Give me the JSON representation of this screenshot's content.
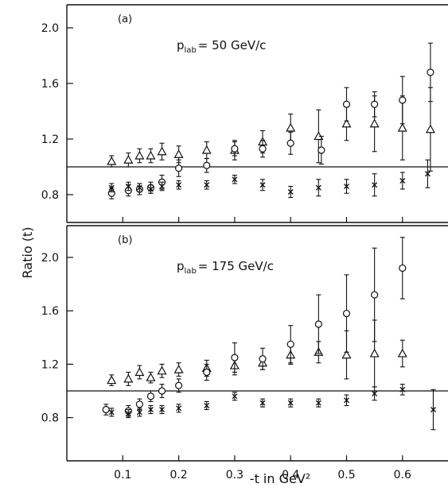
{
  "chart_data": {
    "type": "scatter",
    "ylabel": "Ratio (t)",
    "xlabel": "-t  in  GeV²",
    "x_ticks": [
      0.1,
      0.2,
      0.3,
      0.4,
      0.5,
      0.6
    ],
    "x_tick_labels": [
      "0.1",
      "0.2",
      "0.3",
      "0.4",
      "0.5",
      "0.6"
    ],
    "xlim": [
      0.0,
      0.67
    ],
    "reference_line": 1.0,
    "grid": false,
    "panels": [
      {
        "id": "a",
        "label": "(a)",
        "beam_label_main": "p",
        "beam_label_sub": "lab",
        "beam_label_value": "= 50 GeV/c",
        "ylim": [
          0.6,
          2.2
        ],
        "y_ticks": [
          0.8,
          1.2,
          1.6,
          2.0
        ],
        "y_tick_labels": [
          "0.8",
          "1.2",
          "1.6",
          "2.0"
        ],
        "series": [
          {
            "marker": "triangle",
            "points": [
              {
                "x": 0.08,
                "y": 1.04,
                "err": 0.04
              },
              {
                "x": 0.11,
                "y": 1.05,
                "err": 0.05
              },
              {
                "x": 0.13,
                "y": 1.08,
                "err": 0.05
              },
              {
                "x": 0.15,
                "y": 1.08,
                "err": 0.05
              },
              {
                "x": 0.17,
                "y": 1.11,
                "err": 0.06
              },
              {
                "x": 0.2,
                "y": 1.09,
                "err": 0.06
              },
              {
                "x": 0.25,
                "y": 1.12,
                "err": 0.06
              },
              {
                "x": 0.3,
                "y": 1.12,
                "err": 0.07
              },
              {
                "x": 0.35,
                "y": 1.18,
                "err": 0.08
              },
              {
                "x": 0.4,
                "y": 1.28,
                "err": 0.1
              },
              {
                "x": 0.45,
                "y": 1.22,
                "err": 0.19
              },
              {
                "x": 0.5,
                "y": 1.31,
                "err": 0.12
              },
              {
                "x": 0.55,
                "y": 1.31,
                "err": 0.2
              },
              {
                "x": 0.6,
                "y": 1.28,
                "err": 0.23
              },
              {
                "x": 0.65,
                "y": 1.27,
                "err": 0.3
              }
            ]
          },
          {
            "marker": "circle",
            "points": [
              {
                "x": 0.08,
                "y": 0.81,
                "err": 0.04
              },
              {
                "x": 0.11,
                "y": 0.83,
                "err": 0.04
              },
              {
                "x": 0.13,
                "y": 0.84,
                "err": 0.04
              },
              {
                "x": 0.15,
                "y": 0.85,
                "err": 0.04
              },
              {
                "x": 0.17,
                "y": 0.89,
                "err": 0.05
              },
              {
                "x": 0.2,
                "y": 0.99,
                "err": 0.06
              },
              {
                "x": 0.25,
                "y": 1.01,
                "err": 0.05
              },
              {
                "x": 0.3,
                "y": 1.13,
                "err": 0.05
              },
              {
                "x": 0.35,
                "y": 1.13,
                "err": 0.06
              },
              {
                "x": 0.4,
                "y": 1.17,
                "err": 0.08
              },
              {
                "x": 0.455,
                "y": 1.12,
                "err": 0.1
              },
              {
                "x": 0.5,
                "y": 1.45,
                "err": 0.12
              },
              {
                "x": 0.55,
                "y": 1.45,
                "err": 0.09
              },
              {
                "x": 0.6,
                "y": 1.48,
                "err": 0.17
              },
              {
                "x": 0.65,
                "y": 1.68,
                "err": 0.21
              }
            ]
          },
          {
            "marker": "cross",
            "points": [
              {
                "x": 0.08,
                "y": 0.85,
                "err": 0.03
              },
              {
                "x": 0.11,
                "y": 0.86,
                "err": 0.03
              },
              {
                "x": 0.13,
                "y": 0.85,
                "err": 0.03
              },
              {
                "x": 0.15,
                "y": 0.84,
                "err": 0.03
              },
              {
                "x": 0.17,
                "y": 0.86,
                "err": 0.03
              },
              {
                "x": 0.2,
                "y": 0.87,
                "err": 0.03
              },
              {
                "x": 0.25,
                "y": 0.87,
                "err": 0.03
              },
              {
                "x": 0.3,
                "y": 0.91,
                "err": 0.03
              },
              {
                "x": 0.35,
                "y": 0.87,
                "err": 0.04
              },
              {
                "x": 0.4,
                "y": 0.82,
                "err": 0.04
              },
              {
                "x": 0.45,
                "y": 0.85,
                "err": 0.06
              },
              {
                "x": 0.5,
                "y": 0.86,
                "err": 0.05
              },
              {
                "x": 0.55,
                "y": 0.87,
                "err": 0.08
              },
              {
                "x": 0.6,
                "y": 0.9,
                "err": 0.06
              },
              {
                "x": 0.645,
                "y": 0.95,
                "err": 0.1
              }
            ]
          }
        ]
      },
      {
        "id": "b",
        "label": "(b)",
        "beam_label_main": "p",
        "beam_label_sub": "lab",
        "beam_label_value": "= 175 GeV/c",
        "ylim": [
          0.6,
          2.2
        ],
        "y_ticks": [
          0.8,
          1.2,
          1.6,
          2.0
        ],
        "y_tick_labels": [
          "0.8",
          "1.2",
          "1.6",
          "2.0"
        ],
        "series": [
          {
            "marker": "triangle",
            "points": [
              {
                "x": 0.08,
                "y": 1.08,
                "err": 0.04
              },
              {
                "x": 0.11,
                "y": 1.09,
                "err": 0.05
              },
              {
                "x": 0.13,
                "y": 1.14,
                "err": 0.05
              },
              {
                "x": 0.15,
                "y": 1.1,
                "err": 0.04
              },
              {
                "x": 0.17,
                "y": 1.15,
                "err": 0.05
              },
              {
                "x": 0.2,
                "y": 1.16,
                "err": 0.05
              },
              {
                "x": 0.25,
                "y": 1.17,
                "err": 0.06
              },
              {
                "x": 0.3,
                "y": 1.19,
                "err": 0.07
              },
              {
                "x": 0.35,
                "y": 1.21,
                "err": 0.05
              },
              {
                "x": 0.4,
                "y": 1.27,
                "err": 0.07
              },
              {
                "x": 0.45,
                "y": 1.29,
                "err": 0.08
              },
              {
                "x": 0.5,
                "y": 1.27,
                "err": 0.18
              },
              {
                "x": 0.55,
                "y": 1.28,
                "err": 0.25
              },
              {
                "x": 0.6,
                "y": 1.28,
                "err": 0.1
              }
            ]
          },
          {
            "marker": "circle",
            "points": [
              {
                "x": 0.07,
                "y": 0.86,
                "err": 0.04
              },
              {
                "x": 0.11,
                "y": 0.85,
                "err": 0.04
              },
              {
                "x": 0.13,
                "y": 0.9,
                "err": 0.04
              },
              {
                "x": 0.15,
                "y": 0.96,
                "err": 0.04
              },
              {
                "x": 0.17,
                "y": 1.0,
                "err": 0.05
              },
              {
                "x": 0.2,
                "y": 1.04,
                "err": 0.05
              },
              {
                "x": 0.25,
                "y": 1.14,
                "err": 0.06
              },
              {
                "x": 0.3,
                "y": 1.25,
                "err": 0.11
              },
              {
                "x": 0.35,
                "y": 1.24,
                "err": 0.08
              },
              {
                "x": 0.4,
                "y": 1.35,
                "err": 0.14
              },
              {
                "x": 0.45,
                "y": 1.5,
                "err": 0.22
              },
              {
                "x": 0.5,
                "y": 1.58,
                "err": 0.29
              },
              {
                "x": 0.55,
                "y": 1.72,
                "err": 0.35
              },
              {
                "x": 0.6,
                "y": 1.92,
                "err": 0.23
              }
            ]
          },
          {
            "marker": "cross",
            "points": [
              {
                "x": 0.08,
                "y": 0.84,
                "err": 0.03
              },
              {
                "x": 0.11,
                "y": 0.83,
                "err": 0.03
              },
              {
                "x": 0.13,
                "y": 0.84,
                "err": 0.03
              },
              {
                "x": 0.15,
                "y": 0.86,
                "err": 0.03
              },
              {
                "x": 0.17,
                "y": 0.86,
                "err": 0.03
              },
              {
                "x": 0.2,
                "y": 0.87,
                "err": 0.03
              },
              {
                "x": 0.25,
                "y": 0.89,
                "err": 0.03
              },
              {
                "x": 0.3,
                "y": 0.96,
                "err": 0.03
              },
              {
                "x": 0.35,
                "y": 0.91,
                "err": 0.03
              },
              {
                "x": 0.4,
                "y": 0.91,
                "err": 0.03
              },
              {
                "x": 0.45,
                "y": 0.91,
                "err": 0.03
              },
              {
                "x": 0.5,
                "y": 0.93,
                "err": 0.04
              },
              {
                "x": 0.55,
                "y": 0.98,
                "err": 0.05
              },
              {
                "x": 0.6,
                "y": 1.01,
                "err": 0.04
              },
              {
                "x": 0.655,
                "y": 0.86,
                "err": 0.15
              }
            ]
          }
        ]
      }
    ]
  }
}
